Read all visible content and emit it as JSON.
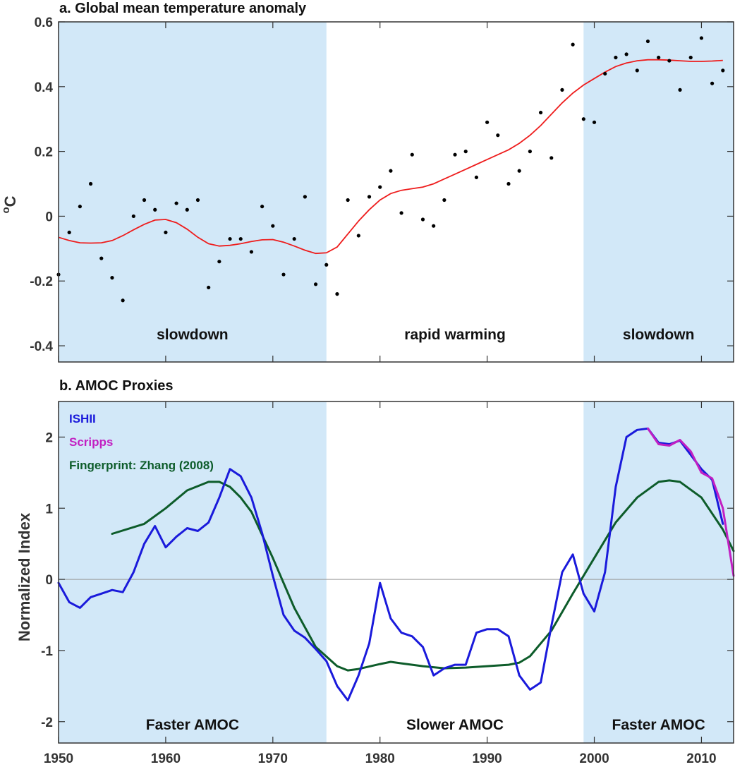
{
  "chart_data": [
    {
      "type": "scatter",
      "title": "a. Global mean temperature anomaly",
      "ylabel": "oC",
      "xlim": [
        1950,
        2013
      ],
      "ylim": [
        -0.45,
        0.6
      ],
      "yticks": [
        -0.4,
        -0.2,
        0,
        0.2,
        0.4,
        0.6
      ],
      "ytick_labels": [
        "-0.4",
        "-0.2",
        "0",
        "0.2",
        "0.4",
        "0.6"
      ],
      "grid": false,
      "regions": [
        {
          "label": "slowdown",
          "start": 1950,
          "end": 1975,
          "shaded": true
        },
        {
          "label": "rapid warming",
          "start": 1975,
          "end": 1999,
          "shaded": false
        },
        {
          "label": "slowdown",
          "start": 1999,
          "end": 2013,
          "shaded": true
        }
      ],
      "series": [
        {
          "kind": "points",
          "color": "#000000",
          "x": [
            1950,
            1951,
            1952,
            1953,
            1954,
            1955,
            1956,
            1957,
            1958,
            1959,
            1960,
            1961,
            1962,
            1963,
            1964,
            1965,
            1966,
            1967,
            1968,
            1969,
            1970,
            1971,
            1972,
            1973,
            1974,
            1975,
            1976,
            1977,
            1978,
            1979,
            1980,
            1981,
            1982,
            1983,
            1984,
            1985,
            1986,
            1987,
            1988,
            1989,
            1990,
            1991,
            1992,
            1993,
            1994,
            1995,
            1996,
            1997,
            1998,
            1999,
            2000,
            2001,
            2002,
            2003,
            2004,
            2005,
            2006,
            2007,
            2008,
            2009,
            2010,
            2011,
            2012
          ],
          "y": [
            -0.18,
            -0.05,
            0.03,
            0.1,
            -0.13,
            -0.19,
            -0.26,
            0.0,
            0.05,
            0.02,
            -0.05,
            0.04,
            0.02,
            0.05,
            -0.22,
            -0.14,
            -0.07,
            -0.07,
            -0.11,
            0.03,
            -0.03,
            -0.18,
            -0.07,
            0.06,
            -0.21,
            -0.15,
            -0.24,
            0.05,
            -0.06,
            0.06,
            0.09,
            0.14,
            0.01,
            0.19,
            -0.01,
            -0.03,
            0.05,
            0.19,
            0.2,
            0.12,
            0.29,
            0.25,
            0.1,
            0.14,
            0.2,
            0.32,
            0.18,
            0.39,
            0.53,
            0.3,
            0.29,
            0.44,
            0.49,
            0.5,
            0.45,
            0.54,
            0.49,
            0.48,
            0.39,
            0.49,
            0.55,
            0.41,
            0.45
          ]
        },
        {
          "kind": "line",
          "color": "#ee1c1c",
          "x": [
            1950,
            1951,
            1952,
            1953,
            1954,
            1955,
            1956,
            1957,
            1958,
            1959,
            1960,
            1961,
            1962,
            1963,
            1964,
            1965,
            1966,
            1967,
            1968,
            1969,
            1970,
            1971,
            1972,
            1973,
            1974,
            1975,
            1976,
            1977,
            1978,
            1979,
            1980,
            1981,
            1982,
            1983,
            1984,
            1985,
            1986,
            1987,
            1988,
            1989,
            1990,
            1991,
            1992,
            1993,
            1994,
            1995,
            1996,
            1997,
            1998,
            1999,
            2000,
            2001,
            2002,
            2003,
            2004,
            2005,
            2006,
            2007,
            2008,
            2009,
            2010,
            2011,
            2012
          ],
          "y": [
            -0.065,
            -0.075,
            -0.082,
            -0.083,
            -0.082,
            -0.075,
            -0.06,
            -0.042,
            -0.025,
            -0.012,
            -0.01,
            -0.02,
            -0.04,
            -0.065,
            -0.085,
            -0.092,
            -0.09,
            -0.085,
            -0.078,
            -0.073,
            -0.072,
            -0.08,
            -0.092,
            -0.105,
            -0.115,
            -0.113,
            -0.095,
            -0.055,
            -0.015,
            0.02,
            0.05,
            0.07,
            0.08,
            0.085,
            0.09,
            0.1,
            0.115,
            0.13,
            0.145,
            0.16,
            0.175,
            0.19,
            0.205,
            0.225,
            0.25,
            0.28,
            0.315,
            0.35,
            0.38,
            0.405,
            0.425,
            0.445,
            0.462,
            0.473,
            0.48,
            0.483,
            0.483,
            0.482,
            0.48,
            0.478,
            0.478,
            0.479,
            0.481
          ]
        }
      ]
    },
    {
      "type": "line",
      "title": "b. AMOC Proxies",
      "ylabel": "Normalized Index",
      "xlim": [
        1950,
        2013
      ],
      "ylim": [
        -2.3,
        2.5
      ],
      "yticks": [
        -2,
        -1,
        0,
        1,
        2
      ],
      "ytick_labels": [
        "-2",
        "-1",
        "0",
        "1",
        "2"
      ],
      "xticks": [
        1950,
        1960,
        1970,
        1980,
        1990,
        2000,
        2010
      ],
      "xtick_labels": [
        "1950",
        "1960",
        "1970",
        "1980",
        "1990",
        "2000",
        "2010"
      ],
      "grid": false,
      "legend_position": "top-left",
      "zero_line": true,
      "regions": [
        {
          "label": "Faster AMOC",
          "start": 1950,
          "end": 1975,
          "shaded": true
        },
        {
          "label": "Slower AMOC",
          "start": 1975,
          "end": 1999,
          "shaded": false
        },
        {
          "label": "Faster AMOC",
          "start": 1999,
          "end": 2013,
          "shaded": true
        }
      ],
      "series": [
        {
          "name": "ISHII",
          "color": "#1a1adb",
          "x": [
            1950,
            1951,
            1952,
            1953,
            1954,
            1955,
            1956,
            1957,
            1958,
            1959,
            1960,
            1961,
            1962,
            1963,
            1964,
            1965,
            1966,
            1967,
            1968,
            1969,
            1970,
            1971,
            1972,
            1973,
            1974,
            1975,
            1976,
            1977,
            1978,
            1979,
            1980,
            1981,
            1982,
            1983,
            1984,
            1985,
            1986,
            1987,
            1988,
            1989,
            1990,
            1991,
            1992,
            1993,
            1994,
            1995,
            1996,
            1997,
            1998,
            1999,
            2000,
            2001,
            2002,
            2003,
            2004,
            2005,
            2006,
            2007,
            2008,
            2009,
            2010,
            2011,
            2012
          ],
          "y": [
            -0.05,
            -0.32,
            -0.4,
            -0.25,
            -0.2,
            -0.15,
            -0.18,
            0.1,
            0.5,
            0.75,
            0.45,
            0.6,
            0.72,
            0.68,
            0.8,
            1.15,
            1.55,
            1.45,
            1.15,
            0.65,
            0.05,
            -0.5,
            -0.72,
            -0.82,
            -0.98,
            -1.15,
            -1.5,
            -1.7,
            -1.35,
            -0.9,
            -0.05,
            -0.55,
            -0.75,
            -0.8,
            -0.95,
            -1.35,
            -1.25,
            -1.2,
            -1.2,
            -0.75,
            -0.7,
            -0.7,
            -0.8,
            -1.35,
            -1.55,
            -1.45,
            -0.65,
            0.1,
            0.35,
            -0.2,
            -0.45,
            0.1,
            1.3,
            2.0,
            2.1,
            2.12,
            1.92,
            1.9,
            1.95,
            1.75,
            1.55,
            1.4,
            0.78
          ]
        },
        {
          "name": "Scripps",
          "color": "#c21fc2",
          "x": [
            2005,
            2006,
            2007,
            2008,
            2009,
            2010,
            2011,
            2012,
            2013
          ],
          "y": [
            2.12,
            1.9,
            1.88,
            1.96,
            1.8,
            1.5,
            1.42,
            1.0,
            0.05
          ]
        },
        {
          "name": "Fingerprint: Zhang (2008)",
          "color": "#0d5c2a",
          "x": [
            1955,
            1958,
            1960,
            1962,
            1964,
            1965,
            1966,
            1967,
            1968,
            1970,
            1972,
            1974,
            1976,
            1977,
            1978,
            1980,
            1981,
            1982,
            1984,
            1986,
            1988,
            1990,
            1992,
            1993,
            1994,
            1996,
            1998,
            2000,
            2002,
            2004,
            2006,
            2007,
            2008,
            2010,
            2012,
            2013
          ],
          "y": [
            0.64,
            0.78,
            1.0,
            1.25,
            1.37,
            1.37,
            1.3,
            1.15,
            0.95,
            0.3,
            -0.4,
            -0.95,
            -1.22,
            -1.28,
            -1.26,
            -1.19,
            -1.16,
            -1.18,
            -1.22,
            -1.25,
            -1.24,
            -1.22,
            -1.2,
            -1.17,
            -1.08,
            -0.72,
            -0.2,
            0.3,
            0.8,
            1.15,
            1.37,
            1.39,
            1.37,
            1.15,
            0.7,
            0.4
          ]
        }
      ]
    }
  ]
}
